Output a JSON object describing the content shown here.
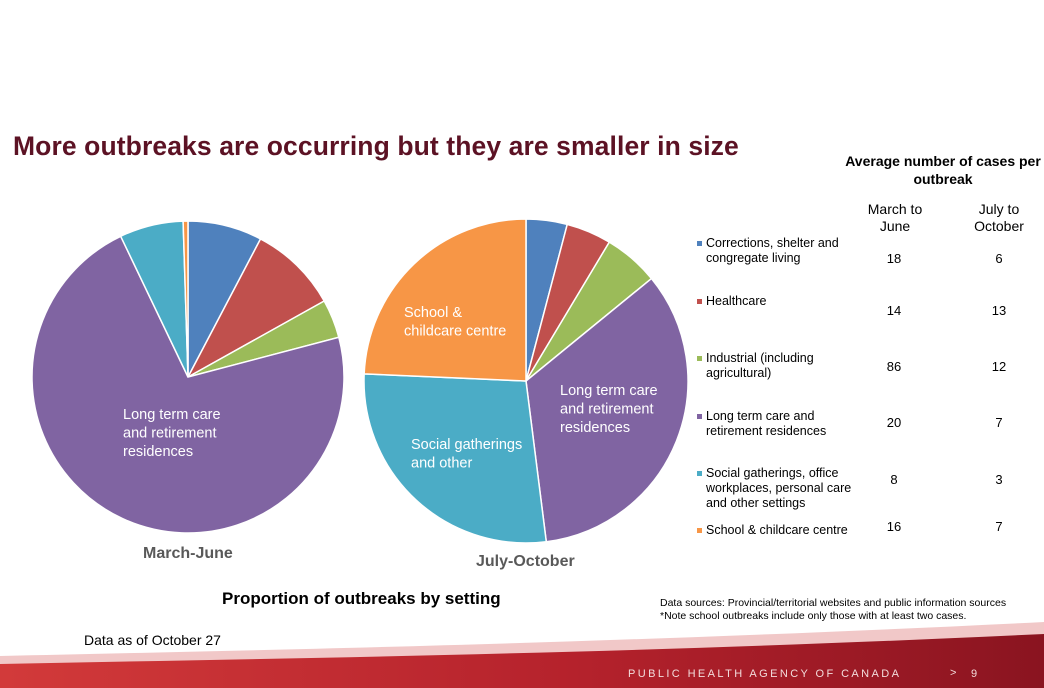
{
  "title": "More outbreaks are occurring but they are smaller in size",
  "chart_data": [
    {
      "type": "pie",
      "title": "March-June",
      "slices": [
        {
          "name": "Corrections, shelter and congregate living",
          "value": 7.7,
          "color": "#4f81bd"
        },
        {
          "name": "Healthcare",
          "value": 9.2,
          "color": "#c0504d"
        },
        {
          "name": "Industrial (including agricultural)",
          "value": 4.0,
          "color": "#9bbb59"
        },
        {
          "name": "Long term care and retirement residences",
          "value": 72.0,
          "color": "#8064a2",
          "label": "Long term care and retirement residences"
        },
        {
          "name": "Social gatherings, office workplaces, personal care and other settings",
          "value": 6.6,
          "color": "#4bacc6"
        },
        {
          "name": "School & childcare centre",
          "value": 0.5,
          "color": "#f79646"
        }
      ]
    },
    {
      "type": "pie",
      "title": "July-October",
      "slices": [
        {
          "name": "Corrections, shelter and congregate living",
          "value": 4.1,
          "color": "#4f81bd"
        },
        {
          "name": "Healthcare",
          "value": 4.5,
          "color": "#c0504d"
        },
        {
          "name": "Industrial (including agricultural)",
          "value": 5.5,
          "color": "#9bbb59"
        },
        {
          "name": "Long term care and retirement residences",
          "value": 33.9,
          "color": "#8064a2",
          "label": "Long term care and retirement residences"
        },
        {
          "name": "Social gatherings, office workplaces, personal care and other settings",
          "value": 27.7,
          "color": "#4bacc6",
          "label": "Social gatherings and other"
        },
        {
          "name": "School & childcare centre",
          "value": 24.3,
          "color": "#f79646",
          "label": "School & childcare centre"
        }
      ]
    }
  ],
  "proportion_title": "Proportion of outbreaks by setting",
  "data_as_of": "Data as of October 27",
  "table": {
    "heading": "Average number of cases per outbreak",
    "col1": "March to June",
    "col2": "July to October",
    "rows": [
      {
        "label": "Corrections, shelter and congregate living",
        "march_june": "18",
        "july_october": "6",
        "color": "#4f81bd"
      },
      {
        "label": "Healthcare",
        "march_june": "14",
        "july_october": "13",
        "color": "#c0504d"
      },
      {
        "label": "Industrial (including agricultural)",
        "march_june": "86",
        "july_october": "12",
        "color": "#9bbb59"
      },
      {
        "label": "Long term care and retirement residences",
        "march_june": "20",
        "july_october": "7",
        "color": "#8064a2"
      },
      {
        "label": "Social gatherings, office workplaces, personal care and other settings",
        "march_june": "8",
        "july_october": "3",
        "color": "#4bacc6"
      },
      {
        "label": "School & childcare centre",
        "march_june": "16",
        "july_october": "7",
        "color": "#f79646"
      }
    ]
  },
  "sources": {
    "line1": "Data sources: Provincial/territorial websites and public information sources",
    "line2": "*Note school outbreaks include only those with at least two cases."
  },
  "footer": {
    "agency": "PUBLIC HEALTH AGENCY OF CANADA",
    "separator": ">",
    "page": "9"
  }
}
